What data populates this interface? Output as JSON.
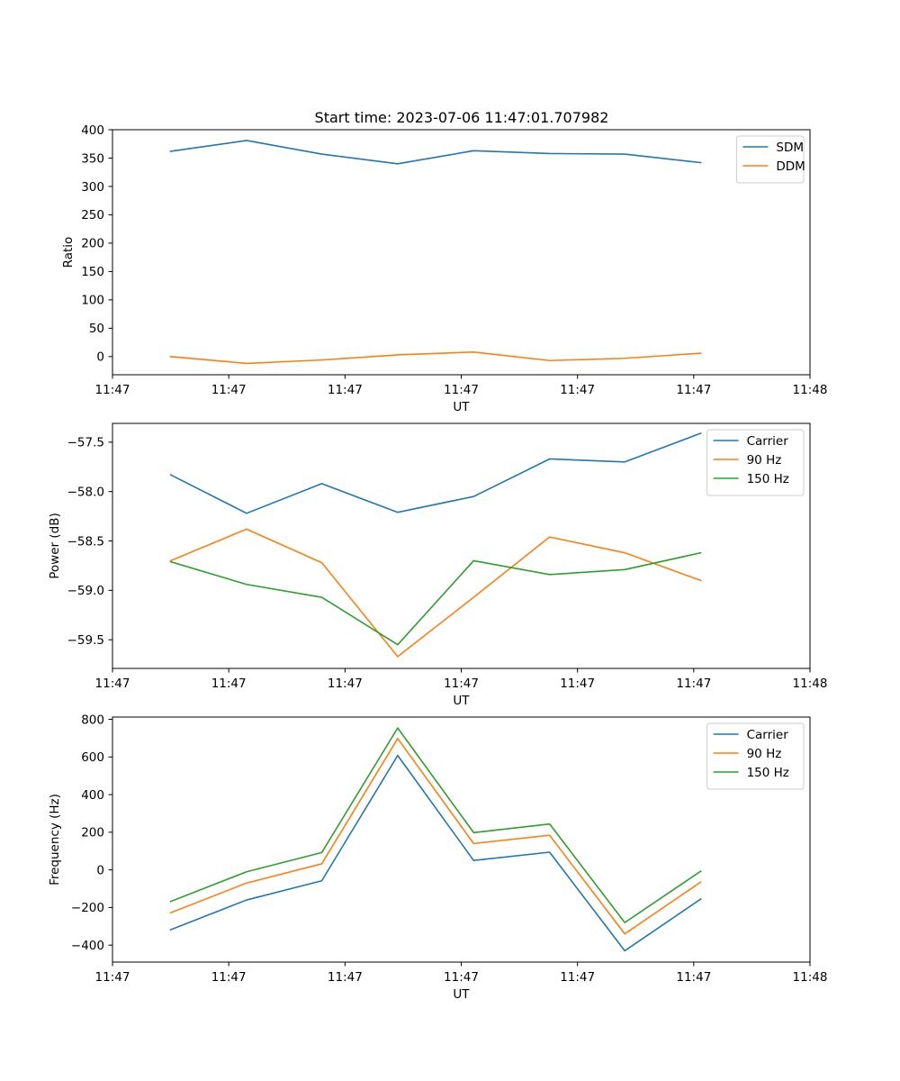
{
  "figure": {
    "title": "Start time: 2023-07-06 11:47:01.707982"
  },
  "colors": {
    "blue": "#1f77b4",
    "orange": "#ff7f0e",
    "green": "#2ca02c"
  },
  "chart_data": [
    {
      "type": "line",
      "title": "Start time: 2023-07-06 11:47:01.707982",
      "xlabel": "UT",
      "ylabel": "Ratio",
      "xlim": [
        0,
        9
      ],
      "x_tick_positions": [
        0,
        1.5,
        3,
        4.5,
        6,
        7.5,
        9
      ],
      "x_tick_labels": [
        "11:47",
        "11:47",
        "11:47",
        "11:47",
        "11:47",
        "11:47",
        "11:48"
      ],
      "ylim": [
        -32,
        400
      ],
      "y_ticks": [
        0,
        50,
        100,
        150,
        200,
        250,
        300,
        350,
        400
      ],
      "y_tick_labels": [
        "0",
        "50",
        "100",
        "150",
        "200",
        "250",
        "300",
        "350",
        "400"
      ],
      "legend_position": "top-right",
      "x": [
        0.75,
        1.73,
        2.7,
        3.68,
        4.66,
        5.64,
        6.61,
        7.59
      ],
      "series": [
        {
          "name": "SDM",
          "color": "#1f77b4",
          "values": [
            362,
            381,
            357,
            340,
            363,
            358,
            357,
            342
          ]
        },
        {
          "name": "DDM",
          "color": "#ff7f0e",
          "values": [
            0,
            -12,
            -6,
            3,
            8,
            -7,
            -3,
            6
          ]
        }
      ]
    },
    {
      "type": "line",
      "title": "",
      "xlabel": "UT",
      "ylabel": "Power (dB)",
      "xlim": [
        0,
        9
      ],
      "x_tick_positions": [
        0,
        1.5,
        3,
        4.5,
        6,
        7.5,
        9
      ],
      "x_tick_labels": [
        "11:47",
        "11:47",
        "11:47",
        "11:47",
        "11:47",
        "11:47",
        "11:48"
      ],
      "ylim": [
        -59.79,
        -57.31
      ],
      "y_ticks": [
        -57.5,
        -58.0,
        -58.5,
        -59.0,
        -59.5
      ],
      "y_tick_labels": [
        "−57.5",
        "−58.0",
        "−58.5",
        "−59.0",
        "−59.5"
      ],
      "legend_position": "top-right",
      "x": [
        0.75,
        1.73,
        2.7,
        3.68,
        4.66,
        5.64,
        6.61,
        7.59
      ],
      "series": [
        {
          "name": "Carrier",
          "color": "#1f77b4",
          "values": [
            -57.83,
            -58.22,
            -57.92,
            -58.21,
            -58.05,
            -57.67,
            -57.7,
            -57.41
          ]
        },
        {
          "name": "90 Hz",
          "color": "#ff7f0e",
          "values": [
            -58.7,
            -58.38,
            -58.72,
            -59.67,
            -59.07,
            -58.46,
            -58.62,
            -58.9
          ]
        },
        {
          "name": "150 Hz",
          "color": "#2ca02c",
          "values": [
            -58.71,
            -58.94,
            -59.07,
            -59.55,
            -58.7,
            -58.84,
            -58.79,
            -58.62
          ]
        }
      ]
    },
    {
      "type": "line",
      "title": "",
      "xlabel": "UT",
      "ylabel": "Frequency (Hz)",
      "xlim": [
        0,
        9
      ],
      "x_tick_positions": [
        0,
        1.5,
        3,
        4.5,
        6,
        7.5,
        9
      ],
      "x_tick_labels": [
        "11:47",
        "11:47",
        "11:47",
        "11:47",
        "11:47",
        "11:47",
        "11:48"
      ],
      "ylim": [
        -490,
        812
      ],
      "y_ticks": [
        800,
        600,
        400,
        200,
        0,
        -200,
        -400
      ],
      "y_tick_labels": [
        "800",
        "600",
        "400",
        "200",
        "0",
        "−200",
        "−400"
      ],
      "legend_position": "top-right",
      "x": [
        0.75,
        1.73,
        2.7,
        3.68,
        4.66,
        5.64,
        6.61,
        7.59
      ],
      "series": [
        {
          "name": "Carrier",
          "color": "#1f77b4",
          "values": [
            -318,
            -160,
            -58,
            608,
            50,
            94,
            -430,
            -155
          ]
        },
        {
          "name": "90 Hz",
          "color": "#ff7f0e",
          "values": [
            -228,
            -70,
            32,
            698,
            140,
            184,
            -340,
            -65
          ]
        },
        {
          "name": "150 Hz",
          "color": "#2ca02c",
          "values": [
            -168,
            -10,
            92,
            754,
            198,
            244,
            -280,
            -7
          ]
        }
      ]
    }
  ]
}
